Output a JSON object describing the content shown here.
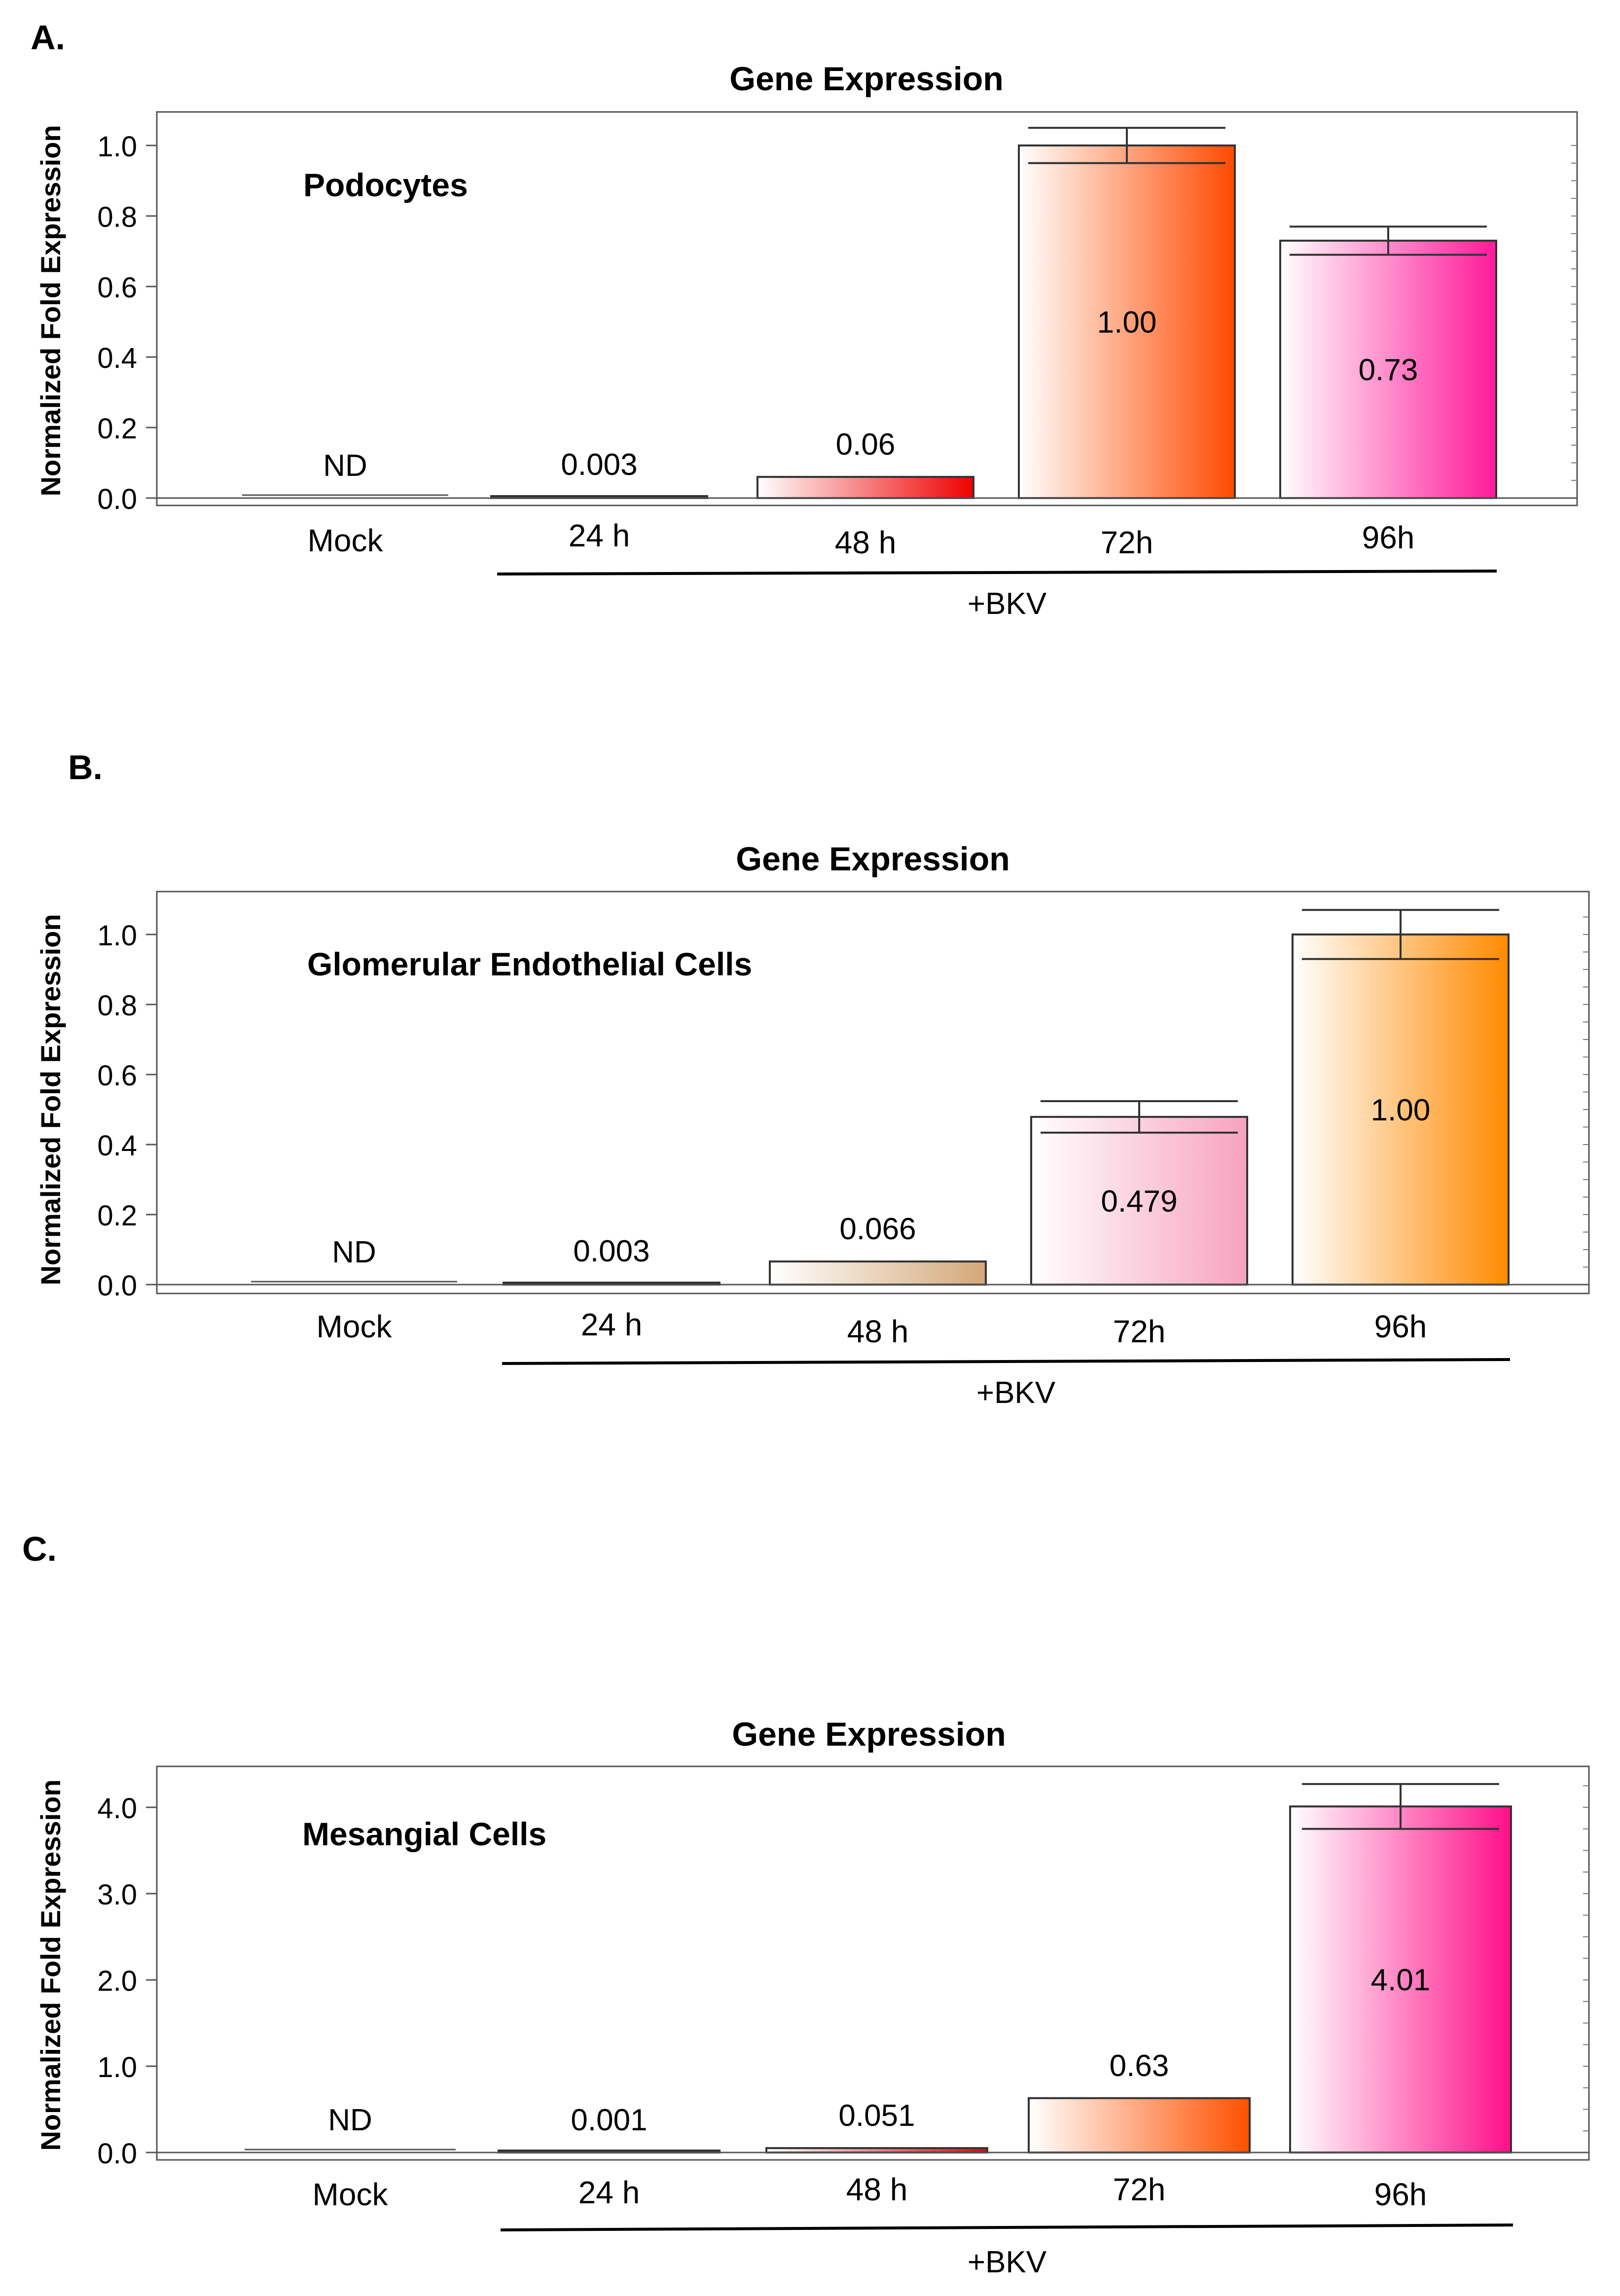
{
  "chart_data": [
    {
      "panel_label": "A.",
      "type": "bar",
      "title": "Gene Expression",
      "annotation": "Podocytes",
      "ylabel": "Normalized Fold Expression",
      "ylim": [
        0,
        1.05
      ],
      "yticks": [
        "0.0",
        "0.2",
        "0.4",
        "0.6",
        "0.8",
        "1.0"
      ],
      "yticks_values": [
        0,
        0.2,
        0.4,
        0.6,
        0.8,
        1.0
      ],
      "categories": [
        "Mock",
        "24 h",
        "48 h",
        "72h",
        "96h"
      ],
      "values": [
        0,
        0.003,
        0.06,
        1.0,
        0.73
      ],
      "data_labels": [
        "ND",
        "0.003",
        "0.06",
        "1.00",
        "0.73"
      ],
      "error": [
        null,
        null,
        null,
        0.05,
        0.04
      ],
      "colors": [
        "#ffffff",
        "#cc0000",
        "#ee0000",
        "#ff4a00",
        "#ff1a99"
      ],
      "group_label": "+BKV",
      "grid": false,
      "legend": "none"
    },
    {
      "panel_label": "B.",
      "type": "bar",
      "title": "Gene Expression",
      "annotation": "Glomerular Endothelial Cells",
      "ylabel": "Normalized Fold Expression",
      "ylim": [
        0,
        1.1
      ],
      "yticks": [
        "0.0",
        "0.2",
        "0.4",
        "0.6",
        "0.8",
        "1.0"
      ],
      "yticks_values": [
        0,
        0.2,
        0.4,
        0.6,
        0.8,
        1.0
      ],
      "categories": [
        "Mock",
        "24 h",
        "48 h",
        "72h",
        "96h"
      ],
      "values": [
        0,
        0.003,
        0.066,
        0.479,
        1.0
      ],
      "data_labels": [
        "ND",
        "0.003",
        "0.066",
        "0.479",
        "1.00"
      ],
      "error": [
        null,
        null,
        null,
        0.045,
        0.07
      ],
      "colors": [
        "#ffffff",
        "#a5703a",
        "#d4a878",
        "#f7a3be",
        "#ff8a00"
      ],
      "group_label": "+BKV",
      "grid": false,
      "legend": "none"
    },
    {
      "panel_label": "C.",
      "type": "bar",
      "title": "Gene Expression",
      "annotation": "Mesangial Cells",
      "ylabel": "Normalized Fold Expression",
      "ylim": [
        0,
        4.5
      ],
      "yticks": [
        "0.0",
        "1.0",
        "2.0",
        "3.0",
        "4.0"
      ],
      "yticks_values": [
        0,
        1,
        2,
        3,
        4
      ],
      "categories": [
        "Mock",
        "24 h",
        "48 h",
        "72h",
        "96h"
      ],
      "values": [
        0,
        0.001,
        0.051,
        0.63,
        4.01
      ],
      "data_labels": [
        "ND",
        "0.001",
        "0.051",
        "0.63",
        "4.01"
      ],
      "error": [
        null,
        null,
        null,
        null,
        0.26
      ],
      "colors": [
        "#ffffff",
        "#444444",
        "#cc1010",
        "#ff5000",
        "#ff0f8a"
      ],
      "group_label": "+BKV",
      "grid": false,
      "legend": "none"
    }
  ]
}
